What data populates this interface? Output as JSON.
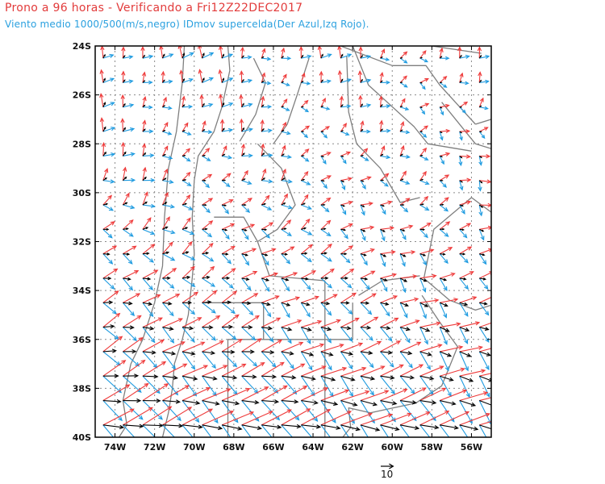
{
  "header": {
    "title": "Prono a 96 horas - Verificando a Fri12Z22DEC2017",
    "subtitle": "Viento medio 1000/500(m/s,negro) IDmov supercelda(Der Azul,Izq Rojo)."
  },
  "map": {
    "lat_range": [
      -40,
      -24
    ],
    "lon_range": [
      -75,
      -55
    ],
    "lat_ticks": [
      {
        "value": -24,
        "label": "24S"
      },
      {
        "value": -26,
        "label": "26S"
      },
      {
        "value": -28,
        "label": "28S"
      },
      {
        "value": -30,
        "label": "30S"
      },
      {
        "value": -32,
        "label": "32S"
      },
      {
        "value": -34,
        "label": "34S"
      },
      {
        "value": -36,
        "label": "36S"
      },
      {
        "value": -38,
        "label": "38S"
      },
      {
        "value": -40,
        "label": "40S"
      }
    ],
    "lon_ticks": [
      {
        "value": -74,
        "label": "74W"
      },
      {
        "value": -72,
        "label": "72W"
      },
      {
        "value": -70,
        "label": "70W"
      },
      {
        "value": -68,
        "label": "68W"
      },
      {
        "value": -66,
        "label": "66W"
      },
      {
        "value": -64,
        "label": "64W"
      },
      {
        "value": -62,
        "label": "62W"
      },
      {
        "value": -60,
        "label": "60W"
      },
      {
        "value": -58,
        "label": "58W"
      },
      {
        "value": -56,
        "label": "56W"
      }
    ],
    "grid": true,
    "grid_style": "dotted",
    "colors": {
      "mean_wind": "#000000",
      "right_mover": "#1e9be0",
      "left_mover": "#ee3a3a",
      "borders": "#7f7f7f",
      "coast": "#6b6b6b",
      "frame": "#000000"
    },
    "reference_vector": {
      "label": "10",
      "magnitude_ms": 10
    },
    "legend": {
      "mean_wind": "negro",
      "right_mover": "Der Azul",
      "left_mover": "Izq Rojo"
    }
  }
}
